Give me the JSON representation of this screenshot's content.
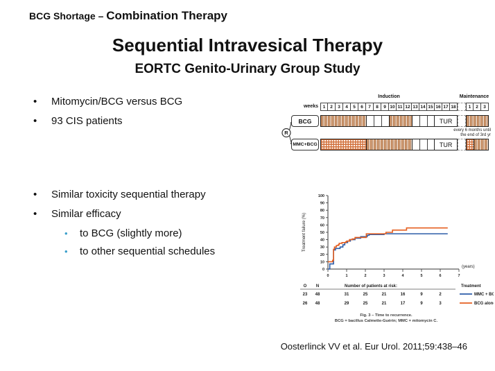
{
  "slide": {
    "kicker_small": "BCG Shortage – ",
    "kicker_large": "Combination Therapy",
    "title": "Sequential Intravesical Therapy",
    "subtitle": "EORTC Genito-Urinary Group Study",
    "citation": "Oosterlinck VV et al. Eur Urol. 2011;59:438–46"
  },
  "bullets": {
    "top": [
      "Mitomycin/BCG versus BCG",
      "93 CIS patients"
    ],
    "bottom": [
      "Similar toxicity sequential therapy",
      "Similar efficacy"
    ],
    "sub": [
      "to BCG (slightly more)",
      "to other sequential schedules"
    ]
  },
  "schedule": {
    "induction_label": "Induction",
    "maintenance_label": "Maintenance",
    "weeks_label": "weeks",
    "induction_weeks": [
      "1",
      "2",
      "3",
      "4",
      "5",
      "6",
      "7",
      "8",
      "9",
      "10",
      "11",
      "12",
      "13",
      "14",
      "15",
      "16",
      "17",
      "18"
    ],
    "maintenance_weeks": [
      "1",
      "2",
      "3"
    ],
    "randomize_label": "R",
    "tur_label": "TUR",
    "maintenance_note_line1": "every 6 months until",
    "maintenance_note_line2": "the end of 3rd yr",
    "rows": [
      {
        "label": "BCG",
        "induction_segments": [
          {
            "type": "striped",
            "cells": 6
          },
          {
            "type": "empty",
            "cells": 3
          },
          {
            "type": "striped",
            "cells": 3
          },
          {
            "type": "empty",
            "cells": 3
          },
          {
            "type": "tur",
            "cells": 3
          }
        ],
        "maintenance_segments": [
          {
            "type": "striped",
            "cells": 3
          }
        ]
      },
      {
        "label": "MMC+BCG",
        "induction_segments": [
          {
            "type": "checkered",
            "cells": 6
          },
          {
            "type": "striped",
            "cells": 6
          },
          {
            "type": "empty",
            "cells": 3
          },
          {
            "type": "tur",
            "cells": 3
          }
        ],
        "maintenance_segments": [
          {
            "type": "checkered",
            "cells": 1
          },
          {
            "type": "striped",
            "cells": 2
          }
        ]
      }
    ]
  },
  "chart_data": {
    "type": "line",
    "subtype": "kaplan-meier-step",
    "ylabel": "Treatment failure (%)",
    "xlabel": "(years)",
    "xlim": [
      0,
      7
    ],
    "ylim": [
      0,
      100
    ],
    "yticks": [
      0,
      10,
      20,
      30,
      40,
      50,
      60,
      70,
      80,
      90,
      100
    ],
    "xticks": [
      0,
      1,
      2,
      3,
      4,
      5,
      6,
      7
    ],
    "grid": false,
    "legend_position": "below-right",
    "series": [
      {
        "name": "MMC + BCG",
        "color": "#2b5ca8",
        "x": [
          0,
          0.1,
          0.3,
          0.4,
          0.65,
          0.8,
          0.9,
          1.05,
          1.2,
          1.45,
          1.75,
          2.1,
          2.2,
          3.0,
          6.4
        ],
        "y": [
          0,
          7,
          26,
          28,
          30,
          33,
          36,
          38,
          40,
          42,
          44,
          46,
          47,
          48,
          48
        ]
      },
      {
        "name": "BCG alone",
        "color": "#e55f20",
        "x": [
          0,
          0.25,
          0.3,
          0.35,
          0.45,
          0.55,
          0.6,
          0.75,
          0.95,
          1.0,
          1.15,
          1.3,
          1.45,
          2.05,
          3.1,
          3.45,
          4.2,
          6.4
        ],
        "y": [
          10,
          12,
          27,
          30,
          32,
          33,
          35,
          36,
          37,
          38,
          40,
          41,
          43,
          48,
          50,
          53,
          56,
          56
        ]
      }
    ],
    "at_risk": {
      "o_header": "O",
      "n_header": "N",
      "title": "Number of patients at risk:",
      "treatment_header": "Treatment",
      "rows": [
        {
          "o": "23",
          "n": "48",
          "values": [
            "31",
            "25",
            "21",
            "16",
            "9",
            "2"
          ],
          "label": "MMC + BCG",
          "color": "#2b5ca8"
        },
        {
          "o": "26",
          "n": "48",
          "values": [
            "29",
            "25",
            "21",
            "17",
            "9",
            "3"
          ],
          "label": "BCG alone",
          "color": "#e55f20"
        }
      ]
    },
    "caption_line1": "Fig. 3 – Time to recurrence.",
    "caption_line2": "BCG = bacillus Calmette-Guérin; MMC = mitomycin C."
  }
}
